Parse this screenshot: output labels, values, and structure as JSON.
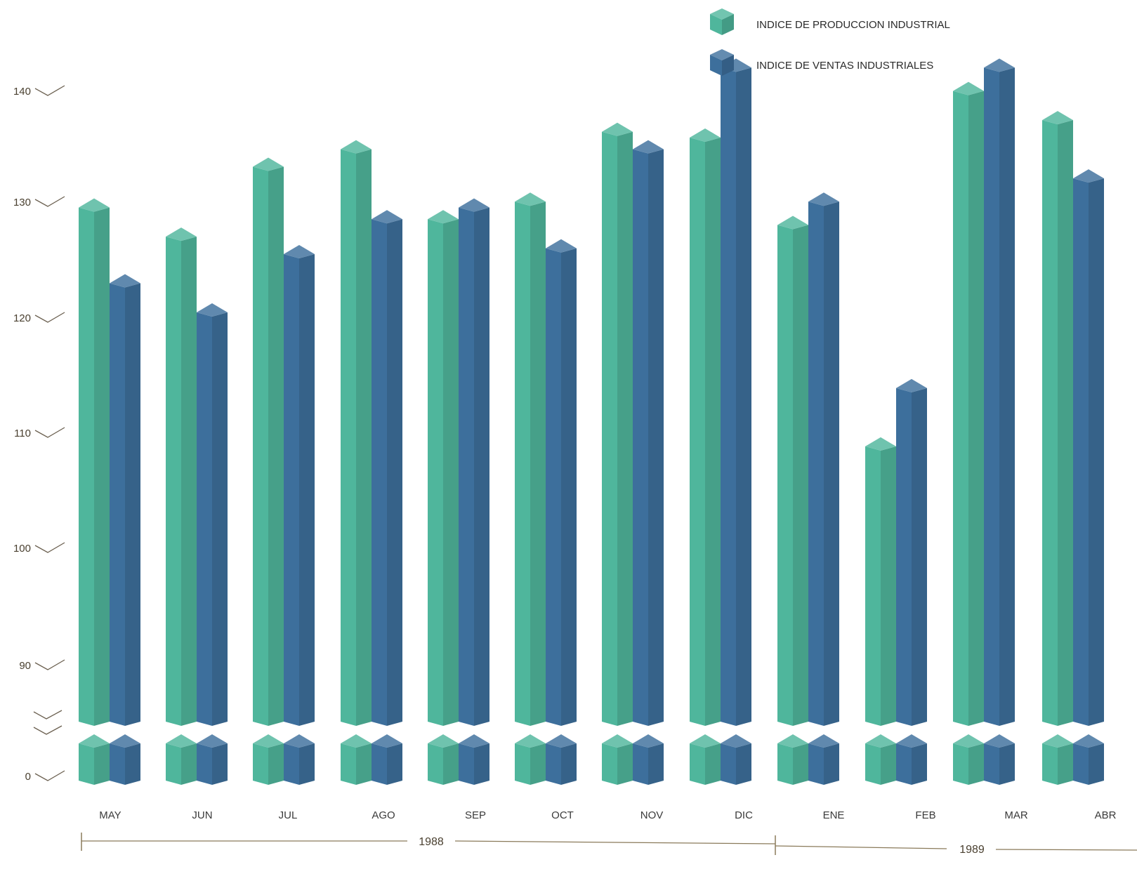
{
  "chart_data": {
    "type": "bar",
    "categories": [
      "MAY",
      "JUN",
      "JUL",
      "AGO",
      "SEP",
      "OCT",
      "NOV",
      "DIC",
      "ENE",
      "FEB",
      "MAR",
      "ABR"
    ],
    "series": [
      {
        "name": "INDICE DE PRODUCCION INDUSTRIAL",
        "color": "#4fb69c",
        "values": [
          129,
          126.5,
          132.5,
          134,
          128,
          129.5,
          135.5,
          135,
          127.5,
          108.5,
          139,
          136.5
        ]
      },
      {
        "name": "INDICE DE VENTAS INDUSTRIALES",
        "color": "#3d6f9c",
        "values": [
          122.5,
          120,
          125,
          128,
          129,
          125.5,
          134,
          141,
          129.5,
          113.5,
          141,
          131.5
        ]
      }
    ],
    "y_ticks": [
      "140",
      "130",
      "120",
      "110",
      "100",
      "90",
      "0"
    ],
    "year_groups": [
      {
        "label": "1988",
        "from": "MAY",
        "to": "DIC"
      },
      {
        "label": "1989",
        "from": "ENE",
        "to": "ABR"
      }
    ],
    "axis_break": "between 0 and 90",
    "grid": false,
    "legend_position": "top-right",
    "title": "",
    "xlabel": "",
    "ylabel": ""
  }
}
